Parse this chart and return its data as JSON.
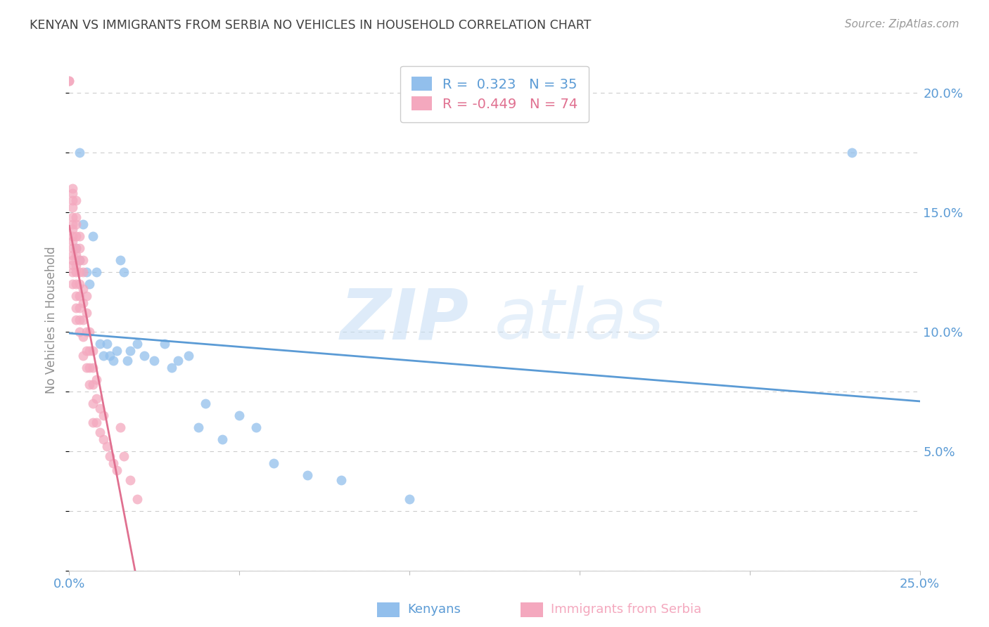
{
  "title": "KENYAN VS IMMIGRANTS FROM SERBIA NO VEHICLES IN HOUSEHOLD CORRELATION CHART",
  "source": "Source: ZipAtlas.com",
  "ylabel": "No Vehicles in Household",
  "xlabel_kenyans": "Kenyans",
  "xlabel_serbia": "Immigrants from Serbia",
  "watermark_zip": "ZIP",
  "watermark_atlas": "atlas",
  "xlim": [
    0.0,
    0.25
  ],
  "ylim": [
    0.0,
    0.21
  ],
  "xticks": [
    0.0,
    0.05,
    0.1,
    0.15,
    0.2,
    0.25
  ],
  "xticklabels": [
    "0.0%",
    "",
    "",
    "",
    "",
    "25.0%"
  ],
  "yticks": [
    0.05,
    0.1,
    0.15,
    0.2
  ],
  "yticklabels": [
    "5.0%",
    "10.0%",
    "15.0%",
    "20.0%"
  ],
  "legend_blue_r": "0.323",
  "legend_blue_n": "35",
  "legend_pink_r": "-0.449",
  "legend_pink_n": "74",
  "blue_color": "#92bfec",
  "pink_color": "#f4a8be",
  "line_blue_color": "#5b9bd5",
  "line_pink_color": "#e07090",
  "title_color": "#404040",
  "axis_label_color": "#5b9bd5",
  "ylabel_color": "#909090",
  "grid_color": "#cccccc",
  "kenyans_x": [
    0.002,
    0.003,
    0.003,
    0.004,
    0.005,
    0.006,
    0.007,
    0.008,
    0.009,
    0.01,
    0.011,
    0.012,
    0.013,
    0.014,
    0.015,
    0.016,
    0.017,
    0.018,
    0.02,
    0.022,
    0.025,
    0.028,
    0.03,
    0.032,
    0.035,
    0.038,
    0.04,
    0.045,
    0.05,
    0.055,
    0.06,
    0.07,
    0.08,
    0.1,
    0.23
  ],
  "kenyans_y": [
    0.135,
    0.175,
    0.13,
    0.145,
    0.125,
    0.12,
    0.14,
    0.125,
    0.095,
    0.09,
    0.095,
    0.09,
    0.088,
    0.092,
    0.13,
    0.125,
    0.088,
    0.092,
    0.095,
    0.09,
    0.088,
    0.095,
    0.085,
    0.088,
    0.09,
    0.06,
    0.07,
    0.055,
    0.065,
    0.06,
    0.045,
    0.04,
    0.038,
    0.03,
    0.175
  ],
  "serbia_x": [
    0.0,
    0.0,
    0.001,
    0.001,
    0.001,
    0.001,
    0.001,
    0.001,
    0.001,
    0.001,
    0.001,
    0.001,
    0.001,
    0.001,
    0.001,
    0.001,
    0.001,
    0.002,
    0.002,
    0.002,
    0.002,
    0.002,
    0.002,
    0.002,
    0.002,
    0.002,
    0.002,
    0.002,
    0.002,
    0.003,
    0.003,
    0.003,
    0.003,
    0.003,
    0.003,
    0.003,
    0.003,
    0.003,
    0.004,
    0.004,
    0.004,
    0.004,
    0.004,
    0.004,
    0.004,
    0.005,
    0.005,
    0.005,
    0.005,
    0.005,
    0.006,
    0.006,
    0.006,
    0.006,
    0.007,
    0.007,
    0.007,
    0.007,
    0.007,
    0.008,
    0.008,
    0.008,
    0.009,
    0.009,
    0.01,
    0.01,
    0.011,
    0.012,
    0.013,
    0.014,
    0.015,
    0.016,
    0.018,
    0.02
  ],
  "serbia_y": [
    0.205,
    0.205,
    0.16,
    0.158,
    0.155,
    0.152,
    0.148,
    0.145,
    0.143,
    0.14,
    0.138,
    0.135,
    0.132,
    0.13,
    0.128,
    0.125,
    0.12,
    0.155,
    0.148,
    0.145,
    0.14,
    0.135,
    0.132,
    0.128,
    0.125,
    0.12,
    0.115,
    0.11,
    0.105,
    0.14,
    0.135,
    0.13,
    0.125,
    0.12,
    0.115,
    0.11,
    0.105,
    0.1,
    0.13,
    0.125,
    0.118,
    0.112,
    0.105,
    0.098,
    0.09,
    0.115,
    0.108,
    0.1,
    0.092,
    0.085,
    0.1,
    0.092,
    0.085,
    0.078,
    0.092,
    0.085,
    0.078,
    0.07,
    0.062,
    0.08,
    0.072,
    0.062,
    0.068,
    0.058,
    0.065,
    0.055,
    0.052,
    0.048,
    0.045,
    0.042,
    0.06,
    0.048,
    0.038,
    0.03
  ]
}
